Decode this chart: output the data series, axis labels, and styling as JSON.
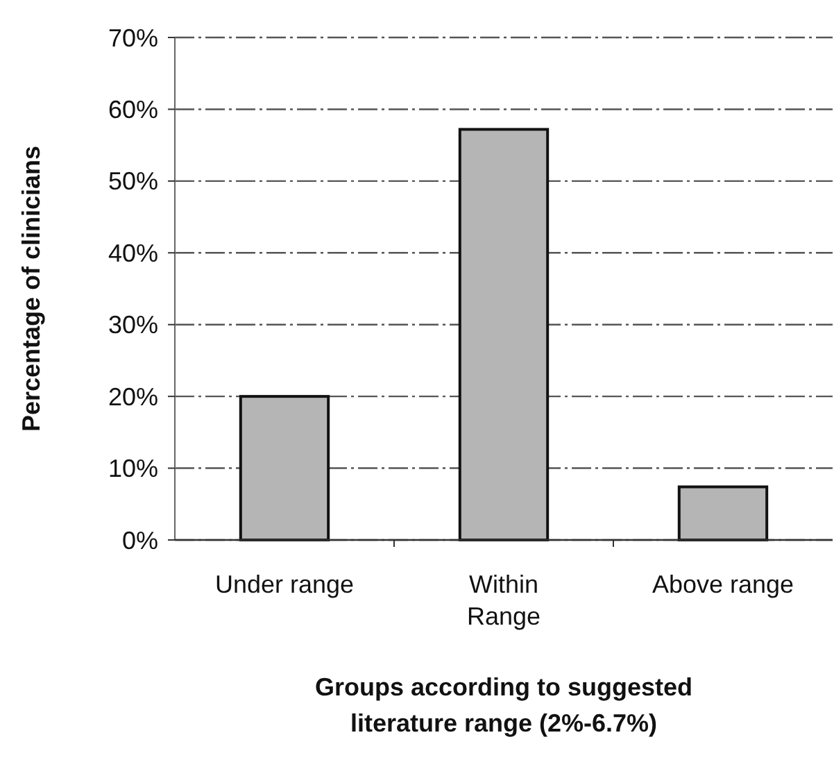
{
  "chart_data": {
    "type": "bar",
    "xlabel": "Groups according to suggested literature range (2%-6.7%)",
    "ylabel": "Percentage of clinicians",
    "categories": [
      "Under range",
      "Within Range",
      "Above range"
    ],
    "values": [
      20,
      57.2,
      7.4
    ],
    "color": "#b5b5b5",
    "ylim": [
      0,
      70
    ],
    "yticks": [
      {
        "value": 0,
        "label": "0%"
      },
      {
        "value": 10,
        "label": "10%"
      },
      {
        "value": 20,
        "label": "20%"
      },
      {
        "value": 30,
        "label": "30%"
      },
      {
        "value": 40,
        "label": "40%"
      },
      {
        "value": 50,
        "label": "50%"
      },
      {
        "value": 60,
        "label": "60%"
      },
      {
        "value": 70,
        "label": "70%"
      }
    ],
    "grid": "y"
  }
}
